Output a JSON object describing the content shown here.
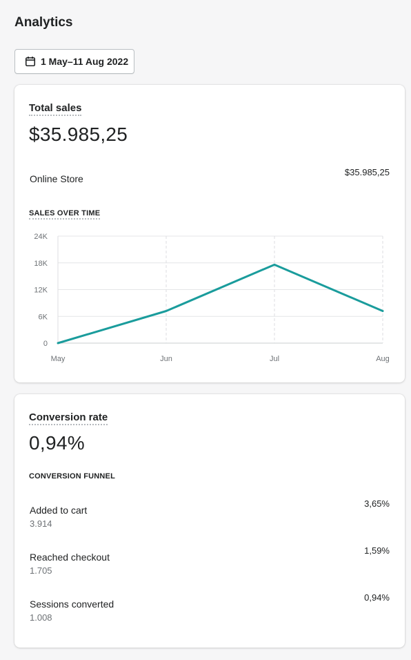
{
  "page": {
    "title": "Analytics"
  },
  "date_range": {
    "label": "1 May–11 Aug 2022",
    "icon": "calendar-icon"
  },
  "total_sales": {
    "heading": "Total sales",
    "value": "$35.985,25",
    "rows": [
      {
        "label": "Online Store",
        "value": "$35.985,25"
      }
    ],
    "chart_title": "SALES OVER TIME"
  },
  "chart_data": {
    "type": "line",
    "categories": [
      "May",
      "Jun",
      "Jul",
      "Aug"
    ],
    "series": [
      {
        "values": [
          0,
          7200,
          17600,
          7200
        ],
        "color": "#1a9c9c"
      }
    ],
    "y_ticks": [
      "0",
      "6K",
      "12K",
      "18K",
      "24K"
    ],
    "ylim": [
      0,
      24000
    ],
    "grid": true
  },
  "conversion": {
    "heading": "Conversion rate",
    "value": "0,94%",
    "funnel_title": "CONVERSION FUNNEL",
    "steps": [
      {
        "label": "Added to cart",
        "count": "3.914",
        "rate": "3,65%"
      },
      {
        "label": "Reached checkout",
        "count": "1.705",
        "rate": "1,59%"
      },
      {
        "label": "Sessions converted",
        "count": "1.008",
        "rate": "0,94%"
      }
    ]
  }
}
